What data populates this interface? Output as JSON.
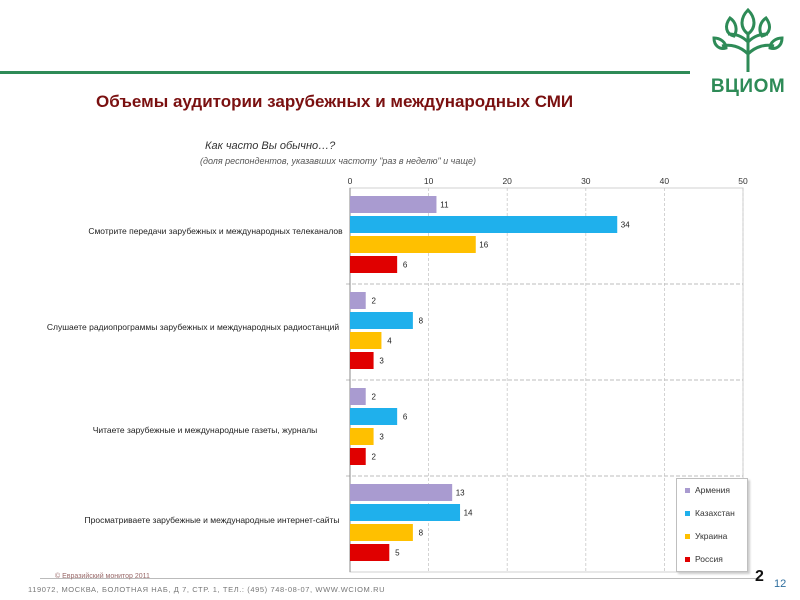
{
  "title": "Объемы аудитории зарубежных и международных СМИ",
  "question": "Как часто Вы обычно…?",
  "note": "(доля респондентов, указавших частоту \"раз в неделю\" и чаще)",
  "logo": {
    "text": "ВЦИОМ",
    "icon": "tree-logo-icon",
    "color": "#2e8b57"
  },
  "footer": {
    "source": "© Евразийский монитор 2011",
    "address": "119072, МОСКВА, БОЛОТНАЯ НАБ, Д 7, СТР. 1, ТЕЛ.: (495) 748-08-07, WWW.WCIOM.RU"
  },
  "slide_number": {
    "big": "2",
    "small": "12"
  },
  "colors": {
    "Армения": "#a99bd0",
    "Казахстан": "#1fb0ec",
    "Украина": "#ffc000",
    "Россия": "#e00000"
  },
  "chart_data": {
    "type": "bar",
    "orientation": "horizontal",
    "title": "Как часто Вы обычно…?",
    "subtitle": "(доля респондентов, указавших частоту \"раз в неделю\" и чаще)",
    "categories": [
      "Смотрите передачи зарубежных и международных телеканалов",
      "Слушаете радиопрограммы зарубежных и международных радиостанций",
      "Читаете зарубежные и международные газеты, журналы",
      "Просматриваете зарубежные и международные интернет-сайты"
    ],
    "series": [
      {
        "name": "Армения",
        "values": [
          11,
          2,
          2,
          13
        ]
      },
      {
        "name": "Казахстан",
        "values": [
          34,
          8,
          6,
          14
        ]
      },
      {
        "name": "Украина",
        "values": [
          16,
          4,
          3,
          8
        ]
      },
      {
        "name": "Россия",
        "values": [
          6,
          3,
          2,
          5
        ]
      }
    ],
    "xlim": [
      0,
      50
    ],
    "xticks": [
      0,
      10,
      20,
      30,
      40,
      50
    ],
    "grid": true,
    "legend": "bottom-right"
  }
}
